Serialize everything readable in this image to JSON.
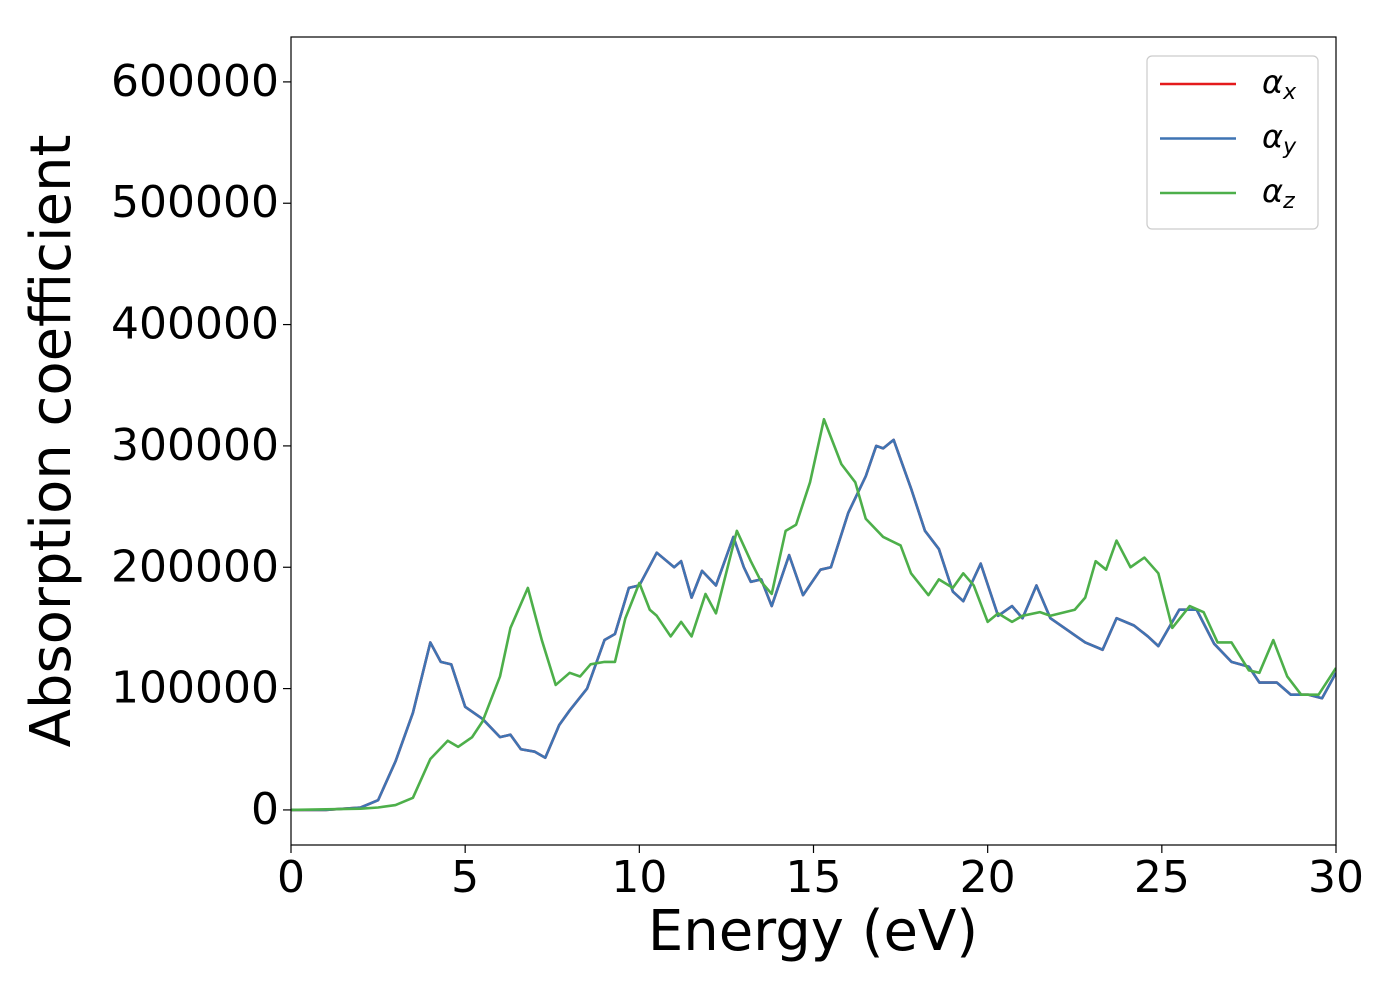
{
  "chart_data": {
    "type": "line",
    "xlabel": "Energy (eV)",
    "ylabel": "Absorption coefficient",
    "xlim": [
      0,
      30
    ],
    "ylim": [
      -28900,
      637000
    ],
    "xticks": [
      0,
      5,
      10,
      15,
      20,
      25,
      30
    ],
    "yticks": [
      0,
      100000,
      200000,
      300000,
      400000,
      500000,
      600000
    ],
    "grid": false,
    "legend": "upper right",
    "series": [
      {
        "name": "αx",
        "color": "#e41a1c",
        "x": [
          0,
          1,
          2,
          2.5,
          3,
          3.5,
          4,
          4.3,
          4.6,
          5,
          5.5,
          6,
          6.3,
          6.6,
          7,
          7.3,
          7.7,
          8,
          8.5,
          9,
          9.3,
          9.7,
          10,
          10.5,
          11,
          11.2,
          11.5,
          11.8,
          12.2,
          12.7,
          13,
          13.2,
          13.5,
          13.8,
          14.3,
          14.7,
          15.2,
          15.5,
          16,
          16.5,
          16.8,
          17,
          17.3,
          17.8,
          18.2,
          18.6,
          19,
          19.3,
          19.8,
          20.3,
          20.7,
          21,
          21.4,
          21.8,
          22.3,
          22.8,
          23.3,
          23.7,
          24.2,
          24.6,
          24.9,
          25.5,
          26,
          26.5,
          27,
          27.5,
          27.8,
          28.3,
          28.7,
          29.2,
          29.6,
          30
        ],
        "values": [
          0,
          0,
          2000,
          8000,
          40000,
          80000,
          138000,
          122000,
          120000,
          85000,
          75000,
          60000,
          62000,
          50000,
          48000,
          43000,
          70000,
          82000,
          100000,
          140000,
          145000,
          183000,
          185000,
          212000,
          200000,
          205000,
          175000,
          197000,
          185000,
          225000,
          200000,
          188000,
          190000,
          168000,
          210000,
          177000,
          198000,
          200000,
          245000,
          275000,
          300000,
          298000,
          305000,
          265000,
          230000,
          215000,
          180000,
          172000,
          203000,
          160000,
          168000,
          158000,
          185000,
          158000,
          148000,
          138000,
          132000,
          158000,
          152000,
          143000,
          135000,
          165000,
          165000,
          137000,
          122000,
          118000,
          105000,
          105000,
          95000,
          95000,
          92000,
          113000
        ]
      },
      {
        "name": "αy",
        "color": "#3f74b3",
        "x": [
          0,
          1,
          2,
          2.5,
          3,
          3.5,
          4,
          4.3,
          4.6,
          5,
          5.5,
          6,
          6.3,
          6.6,
          7,
          7.3,
          7.7,
          8,
          8.5,
          9,
          9.3,
          9.7,
          10,
          10.5,
          11,
          11.2,
          11.5,
          11.8,
          12.2,
          12.7,
          13,
          13.2,
          13.5,
          13.8,
          14.3,
          14.7,
          15.2,
          15.5,
          16,
          16.5,
          16.8,
          17,
          17.3,
          17.8,
          18.2,
          18.6,
          19,
          19.3,
          19.8,
          20.3,
          20.7,
          21,
          21.4,
          21.8,
          22.3,
          22.8,
          23.3,
          23.7,
          24.2,
          24.6,
          24.9,
          25.5,
          26,
          26.5,
          27,
          27.5,
          27.8,
          28.3,
          28.7,
          29.2,
          29.6,
          30
        ],
        "values": [
          0,
          0,
          2000,
          8000,
          40000,
          80000,
          138000,
          122000,
          120000,
          85000,
          75000,
          60000,
          62000,
          50000,
          48000,
          43000,
          70000,
          82000,
          100000,
          140000,
          145000,
          183000,
          185000,
          212000,
          200000,
          205000,
          175000,
          197000,
          185000,
          225000,
          200000,
          188000,
          190000,
          168000,
          210000,
          177000,
          198000,
          200000,
          245000,
          275000,
          300000,
          298000,
          305000,
          265000,
          230000,
          215000,
          180000,
          172000,
          203000,
          160000,
          168000,
          158000,
          185000,
          158000,
          148000,
          138000,
          132000,
          158000,
          152000,
          143000,
          135000,
          165000,
          165000,
          137000,
          122000,
          118000,
          105000,
          105000,
          95000,
          95000,
          92000,
          113000
        ]
      },
      {
        "name": "αz",
        "color": "#4daf4a",
        "x": [
          0,
          2,
          2.5,
          3,
          3.5,
          4,
          4.5,
          4.8,
          5.2,
          5.5,
          6,
          6.3,
          6.8,
          7.2,
          7.6,
          8,
          8.3,
          8.6,
          9,
          9.3,
          9.6,
          10,
          10.3,
          10.5,
          10.9,
          11.2,
          11.5,
          11.9,
          12.2,
          12.8,
          13.2,
          13.5,
          13.8,
          14.2,
          14.5,
          14.9,
          15.3,
          15.8,
          16.2,
          16.5,
          17,
          17.5,
          17.8,
          18.3,
          18.6,
          19,
          19.3,
          19.6,
          20,
          20.3,
          20.7,
          21,
          21.5,
          21.8,
          22.5,
          22.8,
          23.1,
          23.4,
          23.7,
          24.1,
          24.5,
          24.9,
          25.3,
          25.8,
          26.2,
          26.6,
          27,
          27.5,
          27.8,
          28.2,
          28.6,
          29,
          29.5,
          30
        ],
        "values": [
          0,
          1000,
          2000,
          4000,
          10000,
          42000,
          57000,
          52000,
          60000,
          73000,
          110000,
          150000,
          183000,
          140000,
          103000,
          113000,
          110000,
          120000,
          122000,
          122000,
          158000,
          187000,
          165000,
          160000,
          143000,
          155000,
          143000,
          178000,
          162000,
          230000,
          205000,
          188000,
          178000,
          230000,
          235000,
          270000,
          322000,
          285000,
          270000,
          240000,
          225000,
          218000,
          195000,
          177000,
          190000,
          183000,
          195000,
          185000,
          155000,
          162000,
          155000,
          160000,
          163000,
          160000,
          165000,
          175000,
          205000,
          198000,
          222000,
          200000,
          208000,
          195000,
          150000,
          168000,
          163000,
          138000,
          138000,
          115000,
          113000,
          140000,
          110000,
          95000,
          95000,
          117000
        ]
      }
    ]
  }
}
